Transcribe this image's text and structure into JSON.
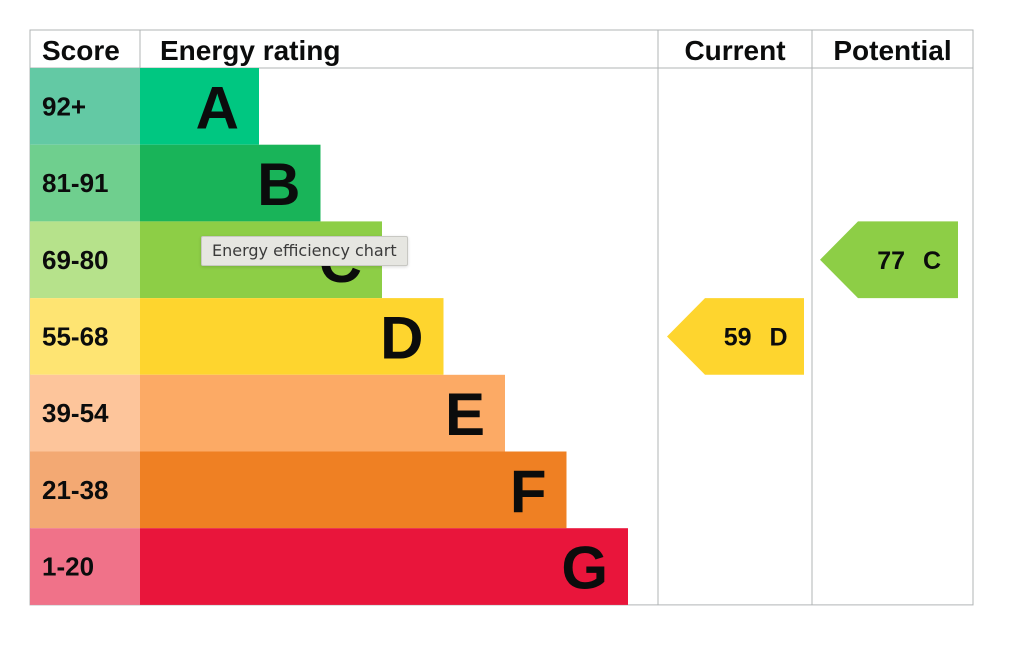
{
  "chart_data": {
    "type": "bar",
    "headers": {
      "score": "Score",
      "rating": "Energy rating",
      "current": "Current",
      "potential": "Potential"
    },
    "bands": [
      {
        "score": "92+",
        "letter": "A",
        "color": "#008054",
        "bar_color": "#00c781",
        "score_bg": "#63c9a4"
      },
      {
        "score": "81-91",
        "letter": "B",
        "color": "#19b459",
        "bar_color": "#19b459",
        "score_bg": "#6fcf8e"
      },
      {
        "score": "69-80",
        "letter": "C",
        "color": "#8dce46",
        "bar_color": "#8dce46",
        "score_bg": "#b6e28b"
      },
      {
        "score": "55-68",
        "letter": "D",
        "color": "#ffd500",
        "bar_color": "#fed52e",
        "score_bg": "#fee472"
      },
      {
        "score": "39-54",
        "letter": "E",
        "color": "#fcaa65",
        "bar_color": "#fcaa65",
        "score_bg": "#fdc59b"
      },
      {
        "score": "21-38",
        "letter": "F",
        "color": "#ef8023",
        "bar_color": "#ef8023",
        "score_bg": "#f3a973"
      },
      {
        "score": "1-20",
        "letter": "G",
        "color": "#e9153b",
        "bar_color": "#e9153b",
        "score_bg": "#f07289"
      }
    ],
    "current": {
      "value": 59,
      "band": "D",
      "color": "#fed52e"
    },
    "potential": {
      "value": 77,
      "band": "C",
      "color": "#8dce46"
    }
  },
  "tooltip": {
    "text": "Energy efficiency chart"
  }
}
